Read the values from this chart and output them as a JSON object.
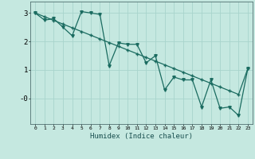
{
  "xlabel": "Humidex (Indice chaleur)",
  "bg_color": "#c5e8e0",
  "grid_color": "#a8d4cc",
  "line_color": "#1a6b60",
  "x_data": [
    0,
    1,
    2,
    3,
    4,
    5,
    6,
    7,
    8,
    9,
    10,
    11,
    12,
    13,
    14,
    15,
    16,
    17,
    18,
    19,
    20,
    21,
    22,
    23
  ],
  "y_jagged": [
    3.0,
    2.75,
    2.8,
    2.5,
    2.2,
    3.05,
    3.0,
    2.95,
    1.15,
    1.95,
    1.9,
    1.9,
    1.25,
    1.5,
    0.3,
    0.75,
    0.65,
    0.65,
    -0.3,
    0.65,
    -0.35,
    -0.3,
    -0.6,
    1.05
  ],
  "y_smooth": [
    3.0,
    2.87,
    2.74,
    2.61,
    2.48,
    2.35,
    2.22,
    2.09,
    1.96,
    1.83,
    1.7,
    1.57,
    1.44,
    1.31,
    1.18,
    1.05,
    0.92,
    0.79,
    0.66,
    0.53,
    0.4,
    0.27,
    0.14,
    1.05
  ],
  "ylim": [
    -0.9,
    3.4
  ],
  "xlim": [
    -0.5,
    23.5
  ],
  "yticks": [
    0,
    1,
    2,
    3
  ],
  "ytick_labels": [
    "-0",
    "1",
    "2",
    "3"
  ],
  "xticks": [
    0,
    1,
    2,
    3,
    4,
    5,
    6,
    7,
    8,
    9,
    10,
    11,
    12,
    13,
    14,
    15,
    16,
    17,
    18,
    19,
    20,
    21,
    22,
    23
  ],
  "marker_size": 2.5,
  "linewidth": 0.9
}
